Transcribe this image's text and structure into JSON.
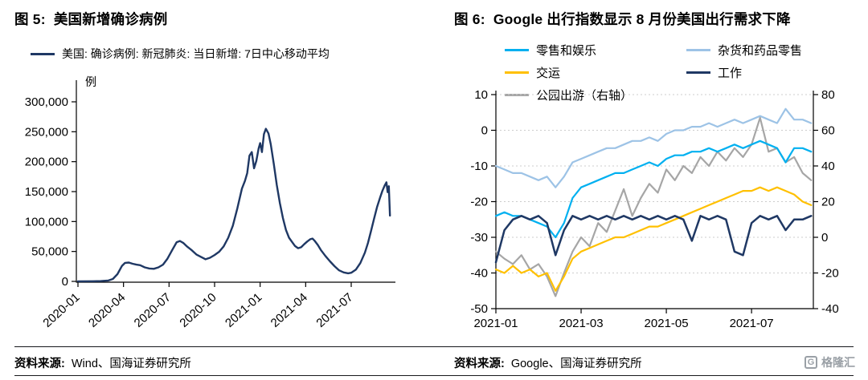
{
  "fig5": {
    "title": "图 5:  美国新增确诊病例",
    "legend": [
      {
        "label": "美国: 确诊病例: 新冠肺炎: 当日新增: 7日中心移动平均",
        "color": "#1F3864"
      }
    ],
    "source_label": "资料来源:",
    "source_text": "Wind、国海证券研究所"
  },
  "fig6": {
    "title": "图 6:  Google 出行指数显示 8 月份美国出行需求下降",
    "legend": [
      {
        "label": "零售和娱乐",
        "color": "#00B0F0"
      },
      {
        "label": "杂货和药品零售",
        "color": "#9DC3E6"
      },
      {
        "label": "交运",
        "color": "#FFC000"
      },
      {
        "label": "工作",
        "color": "#1F3864"
      },
      {
        "label": "公园出游（右轴）",
        "color": "#A6A6A6"
      }
    ],
    "source_label": "资料来源:",
    "source_text": "Google、国海证券研究所"
  },
  "watermark": {
    "icon": "G",
    "text": "格隆汇"
  },
  "chart_data": [
    {
      "type": "line",
      "title": "美国新增确诊病例",
      "ylabel": "例",
      "ylim": [
        0,
        300000
      ],
      "yticks": [
        0,
        50000,
        100000,
        150000,
        200000,
        250000,
        300000
      ],
      "ytick_labels": [
        "0",
        "50,000",
        "100,000",
        "150,000",
        "200,000",
        "250,000",
        "300,000"
      ],
      "xlim": [
        0,
        20.7
      ],
      "xticks": [
        0,
        3,
        6,
        9,
        12,
        15,
        18
      ],
      "xtick_labels": [
        "2020-01",
        "2020-04",
        "2020-07",
        "2020-10",
        "2021-01",
        "2021-04",
        "2021-07"
      ],
      "grid": false,
      "series": [
        {
          "name": "美国: 确诊病例: 新冠肺炎: 当日新增: 7日中心移动平均",
          "color": "#1F3864",
          "width": 2.4,
          "x": [
            0,
            1,
            1.5,
            2,
            2.3,
            2.6,
            2.9,
            3.1,
            3.35,
            3.6,
            3.85,
            4.1,
            4.4,
            4.7,
            5,
            5.3,
            5.6,
            5.9,
            6.2,
            6.5,
            6.72,
            6.95,
            7.2,
            7.5,
            7.8,
            8.1,
            8.4,
            8.7,
            9,
            9.3,
            9.6,
            9.9,
            10.2,
            10.5,
            10.8,
            11,
            11.15,
            11.3,
            11.45,
            11.6,
            11.75,
            11.9,
            12,
            12.12,
            12.25,
            12.38,
            12.55,
            12.7,
            12.9,
            13.1,
            13.3,
            13.5,
            13.7,
            13.9,
            14.1,
            14.3,
            14.5,
            14.7,
            14.9,
            15.1,
            15.3,
            15.45,
            15.6,
            15.8,
            16,
            16.3,
            16.6,
            16.9,
            17.2,
            17.5,
            17.8,
            18,
            18.3,
            18.6,
            18.9,
            19.1,
            19.3,
            19.5,
            19.7,
            19.9,
            20.05,
            20.2,
            20.32,
            20.4,
            20.48,
            20.55
          ],
          "y": [
            200,
            300,
            500,
            1500,
            4000,
            12000,
            26000,
            31000,
            31500,
            29500,
            28000,
            27000,
            23500,
            21500,
            21000,
            23500,
            28000,
            38000,
            52000,
            65500,
            67500,
            64000,
            58000,
            52000,
            45000,
            41000,
            37000,
            39500,
            44000,
            49500,
            58500,
            73000,
            93000,
            122000,
            155000,
            168000,
            181000,
            210000,
            216000,
            189000,
            201000,
            222000,
            231000,
            216000,
            246000,
            255000,
            247000,
            229000,
            196000,
            161000,
            131000,
            106000,
            86000,
            73000,
            66000,
            59000,
            55500,
            57000,
            62000,
            66500,
            70500,
            71500,
            67500,
            61000,
            52500,
            42500,
            33500,
            25500,
            18500,
            15000,
            13500,
            14500,
            19500,
            30500,
            48000,
            64000,
            84000,
            104000,
            124000,
            140000,
            151000,
            160000,
            165500,
            149000,
            159000,
            110000
          ]
        }
      ]
    },
    {
      "type": "line",
      "title": "Google 出行指数显示 8 月份美国出行需求下降",
      "ylim_left": [
        -50,
        10
      ],
      "yticks_left": [
        10,
        0,
        -10,
        -20,
        -30,
        -40,
        -50
      ],
      "ylim_right": [
        -40,
        80
      ],
      "yticks_right": [
        80,
        60,
        40,
        20,
        0,
        -20,
        -40
      ],
      "xlim": [
        0,
        7.45
      ],
      "xticks": [
        0,
        2,
        4,
        6
      ],
      "xtick_labels": [
        "2021-01",
        "2021-03",
        "2021-05",
        "2021-07"
      ],
      "grid": true,
      "x": [
        0,
        0.2,
        0.4,
        0.6,
        0.8,
        1,
        1.2,
        1.4,
        1.6,
        1.8,
        2,
        2.2,
        2.4,
        2.6,
        2.8,
        3,
        3.2,
        3.4,
        3.6,
        3.8,
        4,
        4.2,
        4.4,
        4.6,
        4.8,
        5,
        5.2,
        5.4,
        5.6,
        5.8,
        6,
        6.2,
        6.4,
        6.6,
        6.8,
        7,
        7.2,
        7.4
      ],
      "series": [
        {
          "name": "杂货和药品零售",
          "color": "#9DC3E6",
          "axis": "left",
          "width": 2.2,
          "y": [
            -10,
            -11,
            -12,
            -12,
            -13,
            -14,
            -13,
            -16,
            -13,
            -9,
            -8,
            -7,
            -6,
            -5,
            -5,
            -4,
            -3,
            -3,
            -2,
            -3,
            -1,
            0,
            0,
            1,
            1,
            2,
            1,
            2,
            3,
            2,
            3,
            4,
            3,
            2,
            6,
            3,
            3,
            2
          ]
        },
        {
          "name": "公园出游（右轴）",
          "color": "#A6A6A6",
          "axis": "right",
          "width": 2.2,
          "y": [
            -8,
            -12,
            -15,
            -10,
            -18,
            -15,
            -22,
            -33,
            -20,
            -8,
            0,
            -5,
            8,
            3,
            15,
            27,
            12,
            22,
            30,
            25,
            38,
            32,
            40,
            36,
            45,
            40,
            48,
            43,
            50,
            45,
            52,
            67,
            48,
            50,
            42,
            45,
            36,
            32
          ]
        },
        {
          "name": "交运",
          "color": "#FFC000",
          "axis": "left",
          "width": 2.2,
          "y": [
            -39,
            -40,
            -38,
            -40,
            -39,
            -41,
            -40,
            -45,
            -41,
            -36,
            -34,
            -33,
            -32,
            -31,
            -30,
            -30,
            -29,
            -28,
            -27,
            -27,
            -26,
            -25,
            -24,
            -23,
            -22,
            -21,
            -20,
            -19,
            -18,
            -17,
            -17,
            -16,
            -17,
            -16,
            -17,
            -18,
            -20,
            -21
          ]
        },
        {
          "name": "零售和娱乐",
          "color": "#00B0F0",
          "axis": "left",
          "width": 2.2,
          "y": [
            -24,
            -23,
            -24,
            -24,
            -25,
            -26,
            -27,
            -30,
            -26,
            -19,
            -16,
            -15,
            -14,
            -13,
            -12,
            -12,
            -11,
            -10,
            -9,
            -10,
            -8,
            -7,
            -7,
            -6,
            -6,
            -5,
            -6,
            -5,
            -4,
            -5,
            -4,
            -3,
            -4,
            -5,
            -9,
            -5,
            -5,
            -6
          ]
        },
        {
          "name": "工作",
          "color": "#1F3864",
          "axis": "left",
          "width": 2.5,
          "y": [
            -37,
            -28,
            -25,
            -24,
            -25,
            -24,
            -26,
            -35,
            -28,
            -24,
            -25,
            -24,
            -25,
            -24,
            -25,
            -24,
            -25,
            -24,
            -25,
            -24,
            -25,
            -24,
            -25,
            -31,
            -24,
            -25,
            -24,
            -25,
            -34,
            -35,
            -26,
            -24,
            -25,
            -24,
            -28,
            -25,
            -25,
            -24
          ]
        }
      ]
    }
  ]
}
